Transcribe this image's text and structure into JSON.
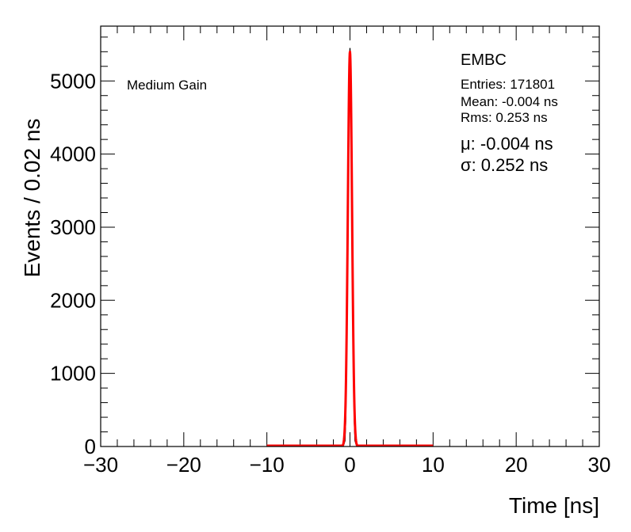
{
  "chart_data": {
    "type": "histogram",
    "xlabel": "Time [ns]",
    "ylabel": "Events / 0.02 ns",
    "xlim": [
      -30,
      30
    ],
    "ylim": [
      0,
      5750
    ],
    "x_ticks": [
      -30,
      -20,
      -10,
      0,
      10,
      20,
      30
    ],
    "x_tick_labels": [
      "−30",
      "−20",
      "−10",
      "0",
      "10",
      "20",
      "30"
    ],
    "y_ticks": [
      0,
      1000,
      2000,
      3000,
      4000,
      5000
    ],
    "y_tick_labels": [
      "0",
      "1000",
      "2000",
      "3000",
      "4000",
      "5000"
    ],
    "grid": false,
    "annotation_left": "Medium Gain",
    "stats": {
      "title": "EMBC",
      "entries": "Entries: 171801",
      "mean": "Mean: -0.004 ns",
      "rms": "Rms: 0.253 ns",
      "mu": "μ: -0.004 ns",
      "sigma": "σ: 0.252 ns"
    },
    "series": [
      {
        "style": "histogram",
        "color": "#000000",
        "x": [
          -1.0,
          -0.8,
          -0.6,
          -0.5,
          -0.4,
          -0.3,
          -0.2,
          -0.1,
          0.0,
          0.1,
          0.2,
          0.3,
          0.4,
          0.5,
          0.6,
          0.8,
          1.0
        ],
        "y": [
          0,
          5,
          80,
          400,
          1500,
          2600,
          4200,
          5200,
          5450,
          5150,
          4200,
          2700,
          1450,
          400,
          80,
          5,
          0
        ]
      },
      {
        "style": "gaussian-fit",
        "color": "#ff0000",
        "amplitude": 5400,
        "mu": -0.004,
        "sigma": 0.252,
        "range": [
          -10,
          10
        ]
      }
    ]
  }
}
